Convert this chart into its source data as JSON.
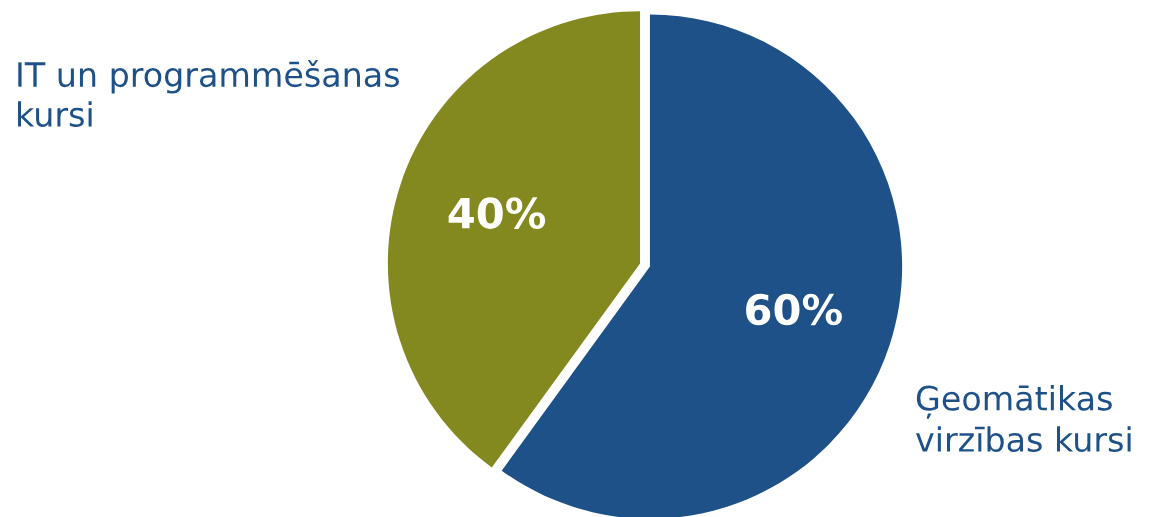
{
  "chart_data": {
    "type": "pie",
    "categories": [
      "Ģeomātikas\nvirzības kursi",
      "IT un programmēšanas\nkursi"
    ],
    "values": [
      60,
      40
    ],
    "colors": [
      "#1f5189",
      "#83891f"
    ],
    "value_labels": [
      "60%",
      "40%"
    ],
    "legend": false
  }
}
